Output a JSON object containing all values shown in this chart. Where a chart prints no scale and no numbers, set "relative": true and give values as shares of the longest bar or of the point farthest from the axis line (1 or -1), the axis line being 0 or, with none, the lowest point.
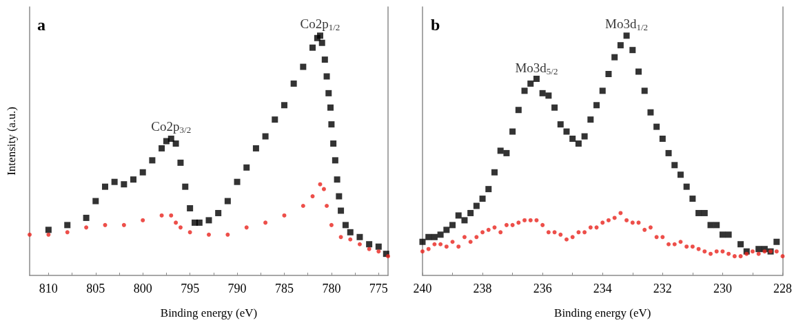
{
  "chart_data": [
    {
      "type": "scatter",
      "relative": true,
      "xlabel": "Binding energy (eV)",
      "ylabel": "Intensity (a.u.)",
      "xlim": [
        812,
        774
      ],
      "xticks": [
        810,
        {
          "value": 807.5,
          "label": null
        },
        805,
        {
          "value": 802.5,
          "label": null
        },
        800,
        {
          "value": 797.5,
          "label": null
        },
        795,
        {
          "value": 792.5,
          "label": null
        },
        790,
        {
          "value": 787.5,
          "label": null
        },
        785,
        {
          "value": 782.5,
          "label": null
        },
        780,
        {
          "value": 777.5,
          "label": null
        },
        775
      ],
      "grid": false,
      "tick_labels": "x",
      "annotations": [
        "a",
        {
          "text": "Co2p$_{3/2}$",
          "x": 797,
          "y": 0.571
        },
        {
          "text": "Co2p$_{1/2}$",
          "x": 781.2,
          "y": 1
        }
      ],
      "series": [
        {
          "color": "#000000",
          "marker": "square",
          "x": [
            810,
            808,
            806,
            805,
            804,
            803,
            802,
            801,
            800,
            799,
            798,
            797.5,
            797,
            796.5,
            796,
            795.5,
            795,
            794.5,
            794,
            793,
            792,
            791,
            790,
            789,
            788,
            787,
            786,
            785,
            784,
            783,
            782,
            781.5,
            781.2,
            781,
            780.7,
            780.5,
            780.3,
            780.1,
            780,
            779.8,
            779.6,
            779.4,
            779.2,
            779,
            778.5,
            778,
            777,
            776,
            775,
            774.2
          ],
          "values": [
            0.19,
            0.21,
            0.24,
            0.31,
            0.37,
            0.39,
            0.38,
            0.4,
            0.43,
            0.48,
            0.53,
            0.56,
            0.57,
            0.55,
            0.47,
            0.37,
            0.28,
            0.22,
            0.22,
            0.23,
            0.26,
            0.31,
            0.39,
            0.45,
            0.53,
            0.58,
            0.65,
            0.71,
            0.8,
            0.87,
            0.95,
            0.99,
            1,
            0.97,
            0.9,
            0.83,
            0.76,
            0.7,
            0.63,
            0.55,
            0.48,
            0.4,
            0.33,
            0.27,
            0.21,
            0.18,
            0.16,
            0.13,
            0.12,
            0.09
          ]
        },
        {
          "color": "#e8231d",
          "marker": "circle",
          "x": [
            812,
            810,
            808,
            806,
            804,
            802,
            800,
            798,
            797,
            796.5,
            796,
            795,
            793,
            791,
            789,
            787,
            785,
            783,
            782,
            781.2,
            780.8,
            780.5,
            780,
            779,
            778,
            777,
            776,
            775,
            774
          ],
          "values": [
            0.17,
            0.17,
            0.18,
            0.2,
            0.21,
            0.21,
            0.23,
            0.25,
            0.25,
            0.22,
            0.2,
            0.18,
            0.17,
            0.17,
            0.2,
            0.22,
            0.25,
            0.29,
            0.33,
            0.38,
            0.36,
            0.29,
            0.21,
            0.16,
            0.15,
            0.13,
            0.11,
            0.1,
            0.08
          ]
        }
      ]
    },
    {
      "type": "scatter",
      "relative": true,
      "xlabel": "Binding energy (eV)",
      "xlim": [
        240,
        228
      ],
      "xticks": [
        240,
        {
          "value": 239,
          "label": null
        },
        238,
        {
          "value": 237,
          "label": null
        },
        236,
        {
          "value": 235,
          "label": null
        },
        234,
        {
          "value": 233,
          "label": null
        },
        232,
        {
          "value": 231,
          "label": null
        },
        230,
        {
          "value": 229,
          "label": null
        },
        228
      ],
      "grid": false,
      "tick_labels": "x",
      "annotations": [
        "b",
        {
          "text": "Mo3d$_{5/2}$",
          "x": 236.2,
          "y": 0.817
        },
        {
          "text": "Mo3d$_{1/2}$",
          "x": 233.2,
          "y": 1
        }
      ],
      "series": [
        {
          "color": "#000000",
          "marker": "square",
          "x": [
            240,
            239.8,
            239.6,
            239.4,
            239.2,
            239,
            238.8,
            238.6,
            238.4,
            238.2,
            238,
            237.8,
            237.6,
            237.4,
            237.2,
            237,
            236.8,
            236.6,
            236.4,
            236.2,
            236,
            235.8,
            235.6,
            235.4,
            235.2,
            235,
            234.8,
            234.6,
            234.4,
            234.2,
            234,
            233.8,
            233.6,
            233.4,
            233.2,
            233,
            232.8,
            232.6,
            232.4,
            232.2,
            232,
            231.8,
            231.6,
            231.4,
            231.2,
            231,
            230.8,
            230.6,
            230.4,
            230.2,
            230,
            229.8,
            229.4,
            229.2,
            228.8,
            228.6,
            228.4,
            228.2
          ],
          "values": [
            0.14,
            0.16,
            0.16,
            0.17,
            0.19,
            0.21,
            0.25,
            0.23,
            0.26,
            0.29,
            0.32,
            0.36,
            0.43,
            0.52,
            0.51,
            0.6,
            0.69,
            0.77,
            0.8,
            0.82,
            0.76,
            0.75,
            0.7,
            0.63,
            0.6,
            0.57,
            0.55,
            0.58,
            0.65,
            0.71,
            0.77,
            0.84,
            0.91,
            0.96,
            1,
            0.94,
            0.85,
            0.77,
            0.68,
            0.62,
            0.57,
            0.51,
            0.46,
            0.42,
            0.37,
            0.32,
            0.26,
            0.26,
            0.21,
            0.21,
            0.17,
            0.17,
            0.13,
            0.1,
            0.11,
            0.11,
            0.1,
            0.14
          ]
        },
        {
          "color": "#e8231d",
          "marker": "circle",
          "x": [
            240,
            239.8,
            239.6,
            239.4,
            239.2,
            239,
            238.8,
            238.6,
            238.4,
            238.2,
            238,
            237.8,
            237.6,
            237.4,
            237.2,
            237,
            236.8,
            236.6,
            236.4,
            236.2,
            236,
            235.8,
            235.6,
            235.4,
            235.2,
            235,
            234.8,
            234.6,
            234.4,
            234.2,
            234,
            233.8,
            233.6,
            233.4,
            233.2,
            233,
            232.8,
            232.6,
            232.4,
            232.2,
            232,
            231.8,
            231.6,
            231.4,
            231.2,
            231,
            230.8,
            230.6,
            230.4,
            230.2,
            230,
            229.8,
            229.6,
            229.4,
            229.2,
            229,
            228.8,
            228.6,
            228.4,
            228.2,
            228
          ],
          "values": [
            0.1,
            0.11,
            0.13,
            0.13,
            0.12,
            0.14,
            0.12,
            0.16,
            0.14,
            0.16,
            0.18,
            0.19,
            0.2,
            0.18,
            0.21,
            0.21,
            0.22,
            0.23,
            0.23,
            0.23,
            0.21,
            0.18,
            0.18,
            0.17,
            0.15,
            0.16,
            0.18,
            0.18,
            0.2,
            0.2,
            0.22,
            0.23,
            0.24,
            0.26,
            0.23,
            0.22,
            0.22,
            0.19,
            0.2,
            0.16,
            0.16,
            0.13,
            0.13,
            0.14,
            0.12,
            0.12,
            0.11,
            0.1,
            0.09,
            0.1,
            0.1,
            0.09,
            0.08,
            0.08,
            0.09,
            0.1,
            0.09,
            0.1,
            0.1,
            0.1,
            0.08
          ]
        }
      ]
    }
  ]
}
